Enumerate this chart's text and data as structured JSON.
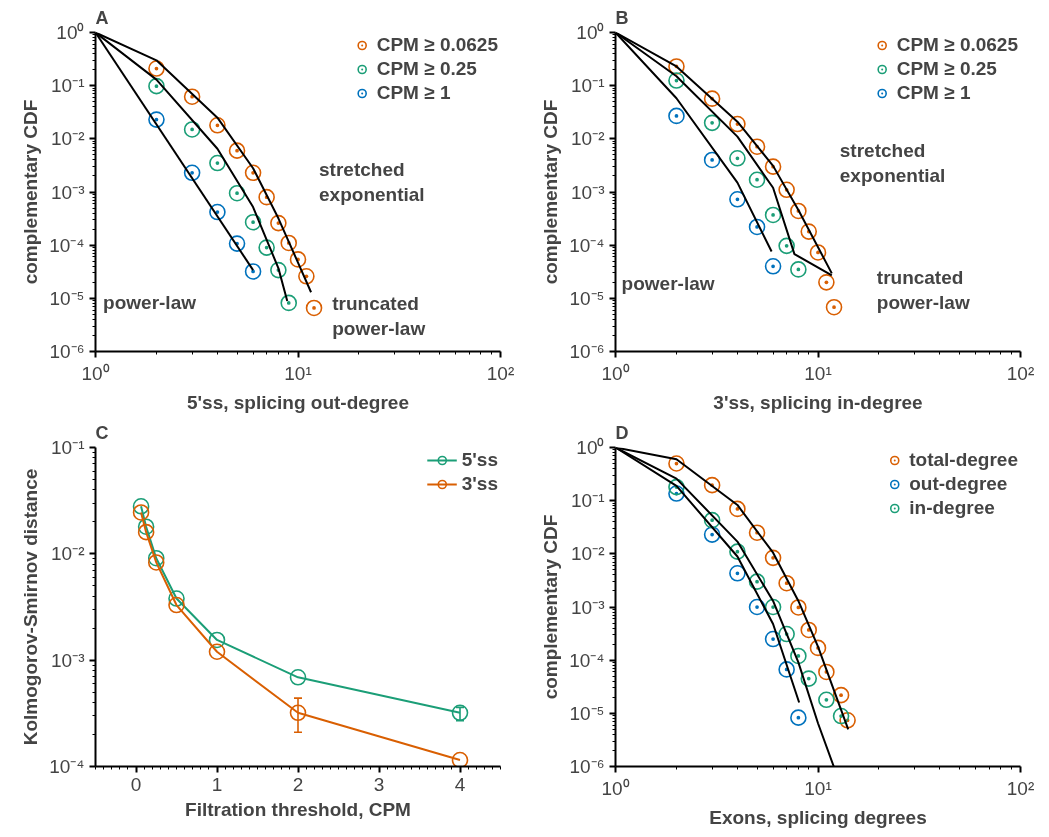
{
  "chart_data": [
    {
      "type": "scatter",
      "title": "A",
      "xlabel": "5'ss, splicing out-degree",
      "ylabel": "complementary CDF",
      "log": "xy",
      "grid": false,
      "legend": "top right",
      "marker": "circle",
      "xlim": [
        1,
        100
      ],
      "ylim": [
        1e-06,
        1
      ],
      "xticks": [
        {
          "value": 1,
          "label": "10⁰"
        },
        {
          "value": 10,
          "label": "10¹"
        },
        {
          "value": 100,
          "label": "10²"
        }
      ],
      "yticks": [
        {
          "value": 1e-06,
          "label": "10⁻⁶"
        },
        {
          "value": 1e-05,
          "label": "10⁻⁵"
        },
        {
          "value": 0.0001,
          "label": "10⁻⁴"
        },
        {
          "value": 0.001,
          "label": "10⁻³"
        },
        {
          "value": 0.01,
          "label": "10⁻²"
        },
        {
          "value": 0.1,
          "label": "10⁻¹"
        },
        {
          "value": 1,
          "label": "10⁰"
        }
      ],
      "series": [
        {
          "name": "CPM ≥ 0.0625",
          "color": "#d95f02",
          "x": [
            2,
            3,
            4,
            5,
            6,
            7,
            8,
            9,
            10,
            11,
            12
          ],
          "values": [
            0.21,
            0.062,
            0.018,
            0.006,
            0.0023,
            0.0008,
            0.00026,
            0.00011,
            5.4e-05,
            2.6e-05,
            6.6e-06
          ]
        },
        {
          "name": "CPM ≥ 0.25",
          "color": "#1b9e77",
          "x": [
            2,
            3,
            4,
            5,
            6,
            7,
            8,
            9
          ],
          "values": [
            0.098,
            0.015,
            0.0035,
            0.00095,
            0.00027,
            9e-05,
            3.4e-05,
            8.2e-06
          ]
        },
        {
          "name": "CPM ≥ 1",
          "color": "#0072bd",
          "x": [
            2,
            3,
            4,
            5,
            6
          ],
          "values": [
            0.023,
            0.0023,
            0.00042,
            0.000107,
            3.2e-05
          ]
        },
        {
          "type": "line",
          "marker": "none",
          "color": "#000000",
          "x": [
            1,
            2,
            4,
            6,
            8,
            10,
            11.6
          ],
          "values": [
            1,
            0.3,
            0.025,
            0.0028,
            0.00032,
            4.7e-05,
            1.3e-05
          ]
        },
        {
          "type": "line",
          "marker": "none",
          "color": "#000000",
          "x": [
            1,
            2,
            4,
            6,
            8,
            8.85
          ],
          "values": [
            1,
            0.13,
            0.0065,
            0.00052,
            3.7e-05,
            8.9e-06
          ]
        },
        {
          "type": "line",
          "marker": "none",
          "color": "#000000",
          "x": [
            1,
            6
          ],
          "values": [
            1,
            3.4e-05
          ]
        }
      ],
      "annotations": [
        "stretched exponential",
        "truncated power-law",
        "power-law"
      ]
    },
    {
      "type": "scatter",
      "title": "B",
      "xlabel": "3'ss, splicing in-degree",
      "ylabel": "complementary CDF",
      "log": "xy",
      "grid": false,
      "legend": "top right",
      "marker": "circle",
      "xlim": [
        1,
        100
      ],
      "ylim": [
        1e-06,
        1
      ],
      "xticks": [
        {
          "value": 1,
          "label": "10⁰"
        },
        {
          "value": 10,
          "label": "10¹"
        },
        {
          "value": 100,
          "label": "10²"
        }
      ],
      "yticks": [
        {
          "value": 1e-06,
          "label": "10⁻⁶"
        },
        {
          "value": 1e-05,
          "label": "10⁻⁵"
        },
        {
          "value": 0.0001,
          "label": "10⁻⁴"
        },
        {
          "value": 0.001,
          "label": "10⁻³"
        },
        {
          "value": 0.01,
          "label": "10⁻²"
        },
        {
          "value": 0.1,
          "label": "10⁻¹"
        },
        {
          "value": 1,
          "label": "10⁰"
        }
      ],
      "series": [
        {
          "name": "CPM ≥ 0.0625",
          "color": "#d95f02",
          "x": [
            2,
            3,
            4,
            5,
            6,
            7,
            8,
            9,
            10,
            11,
            12
          ],
          "values": [
            0.23,
            0.057,
            0.019,
            0.0071,
            0.003,
            0.0011,
            0.00044,
            0.00018,
            7.3e-05,
            2e-05,
            6.8e-06
          ]
        },
        {
          "name": "CPM ≥ 0.25",
          "color": "#1b9e77",
          "x": [
            2,
            3,
            4,
            5,
            6,
            7,
            8
          ],
          "values": [
            0.125,
            0.02,
            0.0043,
            0.0017,
            0.00037,
            9.7e-05,
            3.5e-05
          ]
        },
        {
          "name": "CPM ≥ 1",
          "color": "#0072bd",
          "x": [
            2,
            3,
            4,
            5,
            6
          ],
          "values": [
            0.027,
            0.004,
            0.00073,
            0.00022,
            4e-05
          ]
        },
        {
          "type": "line",
          "marker": "none",
          "color": "#000000",
          "x": [
            1,
            2,
            4,
            6,
            8,
            11.7
          ],
          "values": [
            1,
            0.23,
            0.021,
            0.0031,
            0.00046,
            2.95e-05
          ]
        },
        {
          "type": "line",
          "marker": "none",
          "color": "#000000",
          "x": [
            1,
            2,
            4,
            6,
            7.65,
            11.7
          ],
          "values": [
            1,
            0.15,
            0.011,
            0.0012,
            6.8e-05,
            2.7e-05
          ]
        },
        {
          "type": "line",
          "marker": "none",
          "color": "#000000",
          "x": [
            1,
            2,
            4,
            5.9
          ],
          "values": [
            1,
            0.058,
            0.0015,
            7.6e-05
          ]
        }
      ],
      "annotations": [
        "stretched exponential",
        "truncated power-law",
        "power-law"
      ]
    },
    {
      "type": "line",
      "title": "C",
      "xlabel": "Filtration threshold, CPM",
      "ylabel": "Kolmogorov-Smirnov distance",
      "log": "y",
      "grid": false,
      "legend": "top right",
      "marker": "circle",
      "line_style": "solid",
      "xlim": [
        -0.5,
        4.5
      ],
      "ylim": [
        0.0001,
        0.1
      ],
      "xticks": [
        0,
        1,
        2,
        3,
        4
      ],
      "yticks": [
        {
          "value": 0.0001,
          "label": "10⁻⁴"
        },
        {
          "value": 0.001,
          "label": "10⁻³"
        },
        {
          "value": 0.01,
          "label": "10⁻²"
        },
        {
          "value": 0.1,
          "label": "10⁻¹"
        }
      ],
      "x": [
        0.0625,
        0.125,
        0.25,
        0.5,
        1,
        2,
        4
      ],
      "series": [
        {
          "name": "5'ss",
          "color": "#1b9e77",
          "values": [
            0.028,
            0.018,
            0.0091,
            0.0038,
            0.00155,
            0.00069,
            0.00032
          ],
          "errors": [
            null,
            null,
            null,
            null,
            null,
            null,
            [
              0.00027,
              0.00036
            ]
          ]
        },
        {
          "name": "3'ss",
          "color": "#d95f02",
          "values": [
            0.0245,
            0.016,
            0.0083,
            0.0033,
            0.0012,
            0.00032,
            0.000115
          ],
          "errors": [
            null,
            null,
            null,
            null,
            null,
            [
              0.00021,
              0.00044
            ],
            null
          ]
        }
      ]
    },
    {
      "type": "scatter",
      "title": "D",
      "xlabel": "Exons, splicing degrees",
      "ylabel": "complementary CDF",
      "log": "xy",
      "grid": false,
      "legend": "top right",
      "marker": "circle",
      "xlim": [
        1,
        100
      ],
      "ylim": [
        1e-06,
        1
      ],
      "xticks": [
        {
          "value": 1,
          "label": "10⁰"
        },
        {
          "value": 10,
          "label": "10¹"
        },
        {
          "value": 100,
          "label": "10²"
        }
      ],
      "yticks": [
        {
          "value": 1e-06,
          "label": "10⁻⁶"
        },
        {
          "value": 1e-05,
          "label": "10⁻⁵"
        },
        {
          "value": 0.0001,
          "label": "10⁻⁴"
        },
        {
          "value": 0.001,
          "label": "10⁻³"
        },
        {
          "value": 0.01,
          "label": "10⁻²"
        },
        {
          "value": 0.1,
          "label": "10⁻¹"
        },
        {
          "value": 1,
          "label": "10⁰"
        }
      ],
      "series": [
        {
          "name": "total-degree",
          "color": "#d95f02",
          "x": [
            2,
            3,
            4,
            5,
            6,
            7,
            8,
            9,
            10,
            11,
            13,
            14
          ],
          "values": [
            0.5,
            0.196,
            0.07,
            0.025,
            0.0084,
            0.0028,
            0.00098,
            0.00037,
            0.00017,
            6e-05,
            2.2e-05,
            7.4e-06
          ]
        },
        {
          "name": "out-degree",
          "color": "#0072bd",
          "x": [
            2,
            3,
            4,
            5,
            6,
            7,
            8
          ],
          "values": [
            0.136,
            0.023,
            0.0043,
            0.001,
            0.00025,
            6.7e-05,
            8.3e-06
          ]
        },
        {
          "name": "in-degree",
          "color": "#1b9e77",
          "x": [
            2,
            3,
            4,
            5,
            6,
            7,
            8,
            9,
            11,
            13
          ],
          "values": [
            0.18,
            0.043,
            0.011,
            0.003,
            0.001,
            0.00031,
            0.00012,
            4.5e-05,
            1.8e-05,
            8.9e-06
          ]
        },
        {
          "type": "line",
          "marker": "none",
          "color": "#000000",
          "x": [
            1,
            2,
            4,
            6,
            8,
            10,
            14.1
          ],
          "values": [
            1,
            0.6,
            0.083,
            0.0105,
            0.0013,
            0.00018,
            5e-06
          ]
        },
        {
          "type": "line",
          "marker": "none",
          "color": "#000000",
          "x": [
            1,
            2,
            4,
            6,
            8,
            10,
            11.96
          ],
          "values": [
            1,
            0.26,
            0.017,
            0.0013,
            9.1e-05,
            6.5e-06,
            1e-06
          ]
        },
        {
          "type": "line",
          "marker": "none",
          "color": "#000000",
          "x": [
            1,
            2,
            4,
            6,
            8.07
          ],
          "values": [
            1,
            0.19,
            0.0089,
            0.00048,
            1.6e-05
          ]
        }
      ]
    }
  ]
}
